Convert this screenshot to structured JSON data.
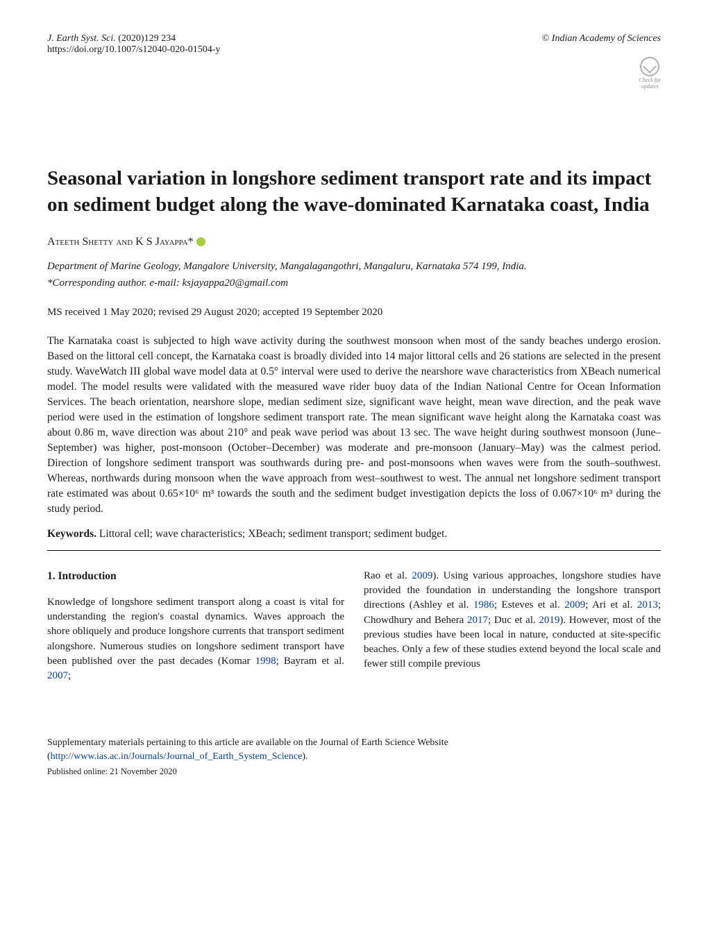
{
  "header": {
    "journal": "J. Earth Syst. Sci.",
    "issue": "(2020)129 234",
    "doi_url": "https://doi.org/10.1007/s12040-020-01504-y",
    "publisher": "© Indian Academy of Sciences",
    "crossmark_line1": "Check for",
    "crossmark_line2": "updates"
  },
  "title": "Seasonal variation in longshore sediment transport rate and its impact on sediment budget along the wave-dominated Karnataka coast, India",
  "authors_line_prefix": "Ateeth Shetty and K S Jayappa*",
  "affiliation": "Department of Marine Geology, Mangalore University, Mangalagangothri, Mangaluru, Karnataka 574 199, India.",
  "corresponding": "*Corresponding author. e-mail: ksjayappa20@gmail.com",
  "dates": "MS received 1 May 2020; revised 29 August 2020; accepted 19 September 2020",
  "abstract": "The Karnataka coast is subjected to high wave activity during the southwest monsoon when most of the sandy beaches undergo erosion. Based on the littoral cell concept, the Karnataka coast is broadly divided into 14 major littoral cells and 26 stations are selected in the present study. WaveWatch III global wave model data at 0.5° interval were used to derive the nearshore wave characteristics from XBeach numerical model. The model results were validated with the measured wave rider buoy data of the Indian National Centre for Ocean Information Services. The beach orientation, nearshore slope, median sediment size, significant wave height, mean wave direction, and the peak wave period were used in the estimation of longshore sediment transport rate. The mean significant wave height along the Karnataka coast was about 0.86 m, wave direction was about 210° and peak wave period was about 13 sec. The wave height during southwest monsoon (June–September) was higher, post-monsoon (October–December) was moderate and pre-monsoon (January–May) was the calmest period. Direction of longshore sediment transport was southwards during pre- and post-monsoons when waves were from the south–southwest. Whereas, northwards during monsoon when the wave approach from west–southwest to west. The annual net longshore sediment transport rate estimated was about 0.65×10⁶ m³ towards the south and the sediment budget investigation depicts the loss of 0.067×10⁶ m³ during the study period.",
  "keywords_label": "Keywords.",
  "keywords_text": " Littoral cell; wave characteristics; XBeach; sediment transport; sediment budget.",
  "section1_heading": "1. Introduction",
  "col_left_p1_a": "Knowledge of longshore sediment transport along a coast is vital for understanding the region's coastal dynamics. Waves approach the shore obliquely and produce longshore currents that transport sediment alongshore. Numerous studies on longshore sediment transport have been published over the past decades (Komar ",
  "cite_1998": "1998",
  "col_left_p1_b": "; Bayram et al. ",
  "cite_2007": "2007",
  "col_left_p1_c": ";",
  "col_right_p1_a": "Rao et al. ",
  "cite_2009a": "2009",
  "col_right_p1_b": "). Using various approaches, longshore studies have provided the foundation in understanding the longshore transport directions (Ashley et al. ",
  "cite_1986": "1986",
  "col_right_p1_c": "; Esteves et al. ",
  "cite_2009b": "2009",
  "col_right_p1_d": "; Ari et al. ",
  "cite_2013": "2013",
  "col_right_p1_e": "; Chowdhury and Behera ",
  "cite_2017": "2017",
  "col_right_p1_f": "; Duc et al. ",
  "cite_2019": "2019",
  "col_right_p1_g": "). However, most of the previous studies have been local in nature, conducted at site-specific beaches. Only a few of these studies extend beyond the local scale and fewer still compile previous",
  "footer_note_a": "Supplementary materials pertaining to this article are available on the Journal of Earth Science Website (",
  "footer_link": "http://www.ias.ac.in/Journals/Journal_of_Earth_System_Science",
  "footer_note_b": ").",
  "pub_date": "Published online: 21 November 2020",
  "colors": {
    "link_blue": "#0040a0",
    "orcid_green": "#a6ce39",
    "text": "#1a1a1a"
  }
}
